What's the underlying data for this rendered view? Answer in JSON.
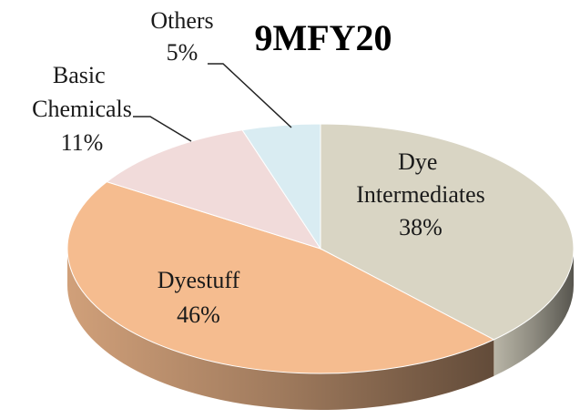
{
  "chart_data": {
    "type": "pie",
    "title": "9MFY20",
    "categories": [
      "Dye Intermediates",
      "Dyestuff",
      "Basic Chemicals",
      "Others"
    ],
    "values": [
      38,
      46,
      11,
      5
    ],
    "value_labels": [
      "38%",
      "46%",
      "11%",
      "5%"
    ],
    "colors": [
      "#d9d5c4",
      "#f5bc8f",
      "#f1dbda",
      "#d9ecf2"
    ]
  }
}
